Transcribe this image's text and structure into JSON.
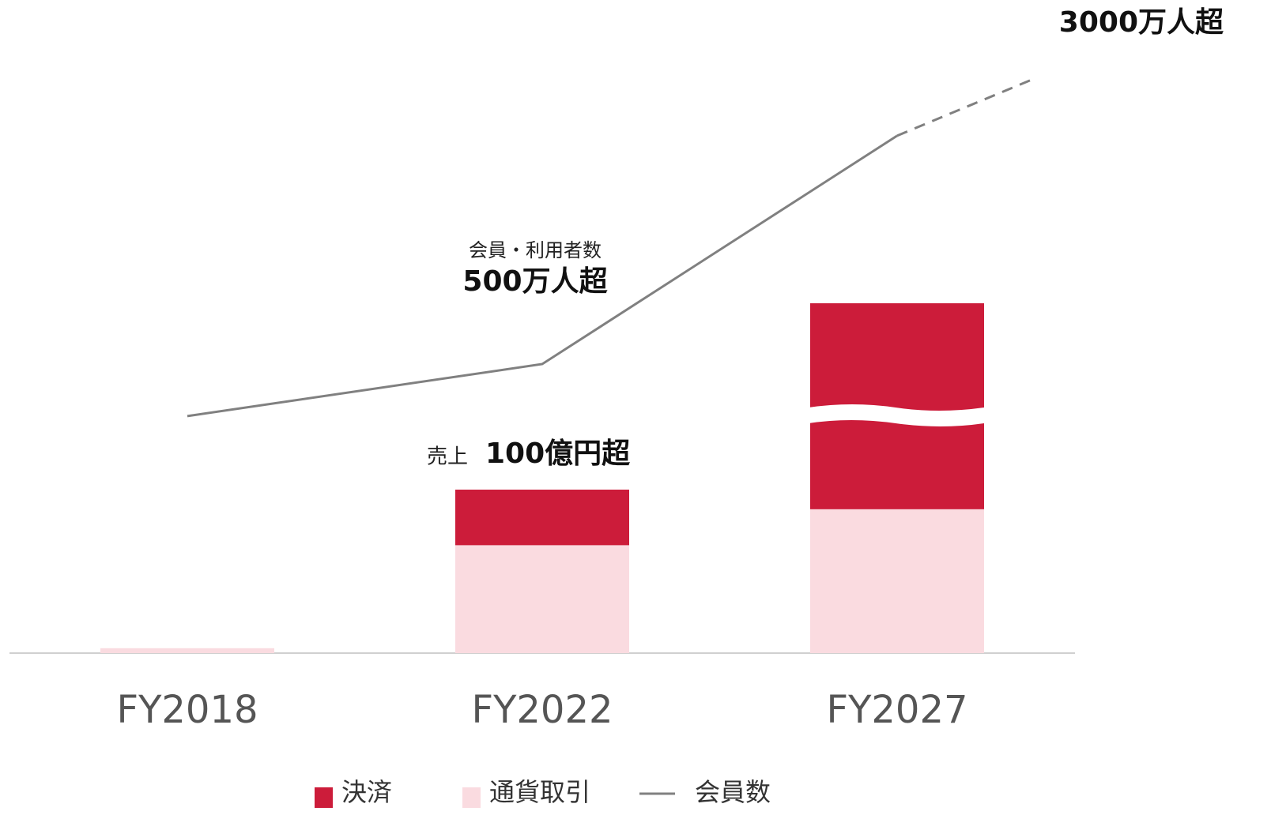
{
  "chart_data": {
    "type": "bar-line",
    "categories": [
      "FY2018",
      "FY2022",
      "FY2027"
    ],
    "series": [
      {
        "name": "通貨取引",
        "color": "#fadbe0",
        "values": [
          3,
          66,
          88
        ]
      },
      {
        "name": "決済",
        "color": "#cc1c3a",
        "values": [
          0,
          34,
          126
        ]
      },
      {
        "name": "会員数",
        "color": "#808080",
        "values": [
          410,
          500,
          895
        ],
        "axis": "y2"
      }
    ],
    "annotations": {
      "members_label": "会員・利用者数",
      "members_value": "500万人超",
      "sales_label": "売上",
      "sales_value": "100億円超",
      "target": "3000万人超"
    }
  }
}
